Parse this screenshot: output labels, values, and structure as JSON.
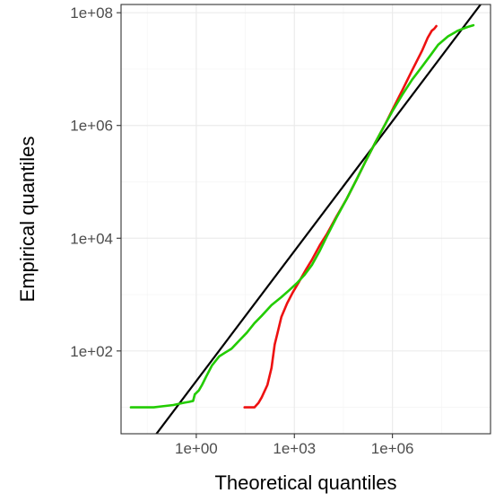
{
  "chart_data": {
    "type": "line",
    "title": "",
    "xlabel": "Theoretical quantiles",
    "ylabel": "Empirical quantiles",
    "x_scale": "log10",
    "y_scale": "log10",
    "xlim": [
      0.005,
      1000000000.0
    ],
    "ylim": [
      3.4,
      140000000.0
    ],
    "x_ticks": [
      1,
      1000,
      1000000
    ],
    "x_tick_labels": [
      "1e+00",
      "1e+03",
      "1e+06"
    ],
    "y_ticks": [
      100,
      10000,
      1000000,
      100000000
    ],
    "y_tick_labels": [
      "1e+02",
      "1e+04",
      "1e+06",
      "1e+08"
    ],
    "grid": true,
    "legend": "none",
    "reference_line": {
      "name": "",
      "color": "#000000",
      "x": [
        0.005,
        1000000000.0
      ],
      "y": [
        0.5,
        240000000.0
      ]
    },
    "series": [
      {
        "color": "#ee1111",
        "x": [
          30,
          50,
          60,
          80,
          100,
          150,
          200,
          250,
          300,
          400,
          600,
          900,
          1400,
          2200,
          3500,
          6000,
          10000,
          20000,
          40000,
          80000,
          150000,
          300000,
          600000,
          1000000,
          2000000,
          4000000,
          8000000,
          12000000,
          16000000,
          19000000,
          22000000
        ],
        "y": [
          10,
          10,
          10,
          12,
          15,
          25,
          50,
          130,
          200,
          400,
          700,
          1100,
          1700,
          2700,
          4200,
          7500,
          12000,
          25000,
          50000,
          110000,
          230000,
          500000,
          1050000,
          1900000,
          4200000,
          9500000,
          21000000,
          36000000,
          48000000,
          52000000,
          58000000
        ]
      },
      {
        "color": "#22cc00",
        "x": [
          0.01,
          0.02,
          0.03,
          0.05,
          0.1,
          0.2,
          0.4,
          0.6,
          0.8,
          0.9,
          1.0,
          1.2,
          1.5,
          2,
          3,
          5,
          8,
          12,
          20,
          35,
          60,
          100,
          200,
          400,
          700,
          1200,
          2000,
          3500,
          6000,
          10000,
          20000,
          40000,
          80000,
          150000,
          300000,
          600000,
          1000000,
          2000000,
          4000000,
          8000000,
          15000000,
          25000000,
          50000000,
          100000000,
          200000000,
          300000000
        ],
        "y": [
          10,
          10,
          10,
          10,
          10.5,
          11,
          12,
          12.5,
          13,
          17,
          18,
          20,
          25,
          35,
          55,
          80,
          95,
          110,
          150,
          210,
          310,
          420,
          650,
          900,
          1200,
          1600,
          2200,
          3400,
          6000,
          11000,
          24000,
          50000,
          110000,
          230000,
          500000,
          1050000,
          1800000,
          3500000,
          6500000,
          11000000,
          18000000,
          27000000,
          38000000,
          48000000,
          56000000,
          60000000
        ]
      }
    ]
  }
}
